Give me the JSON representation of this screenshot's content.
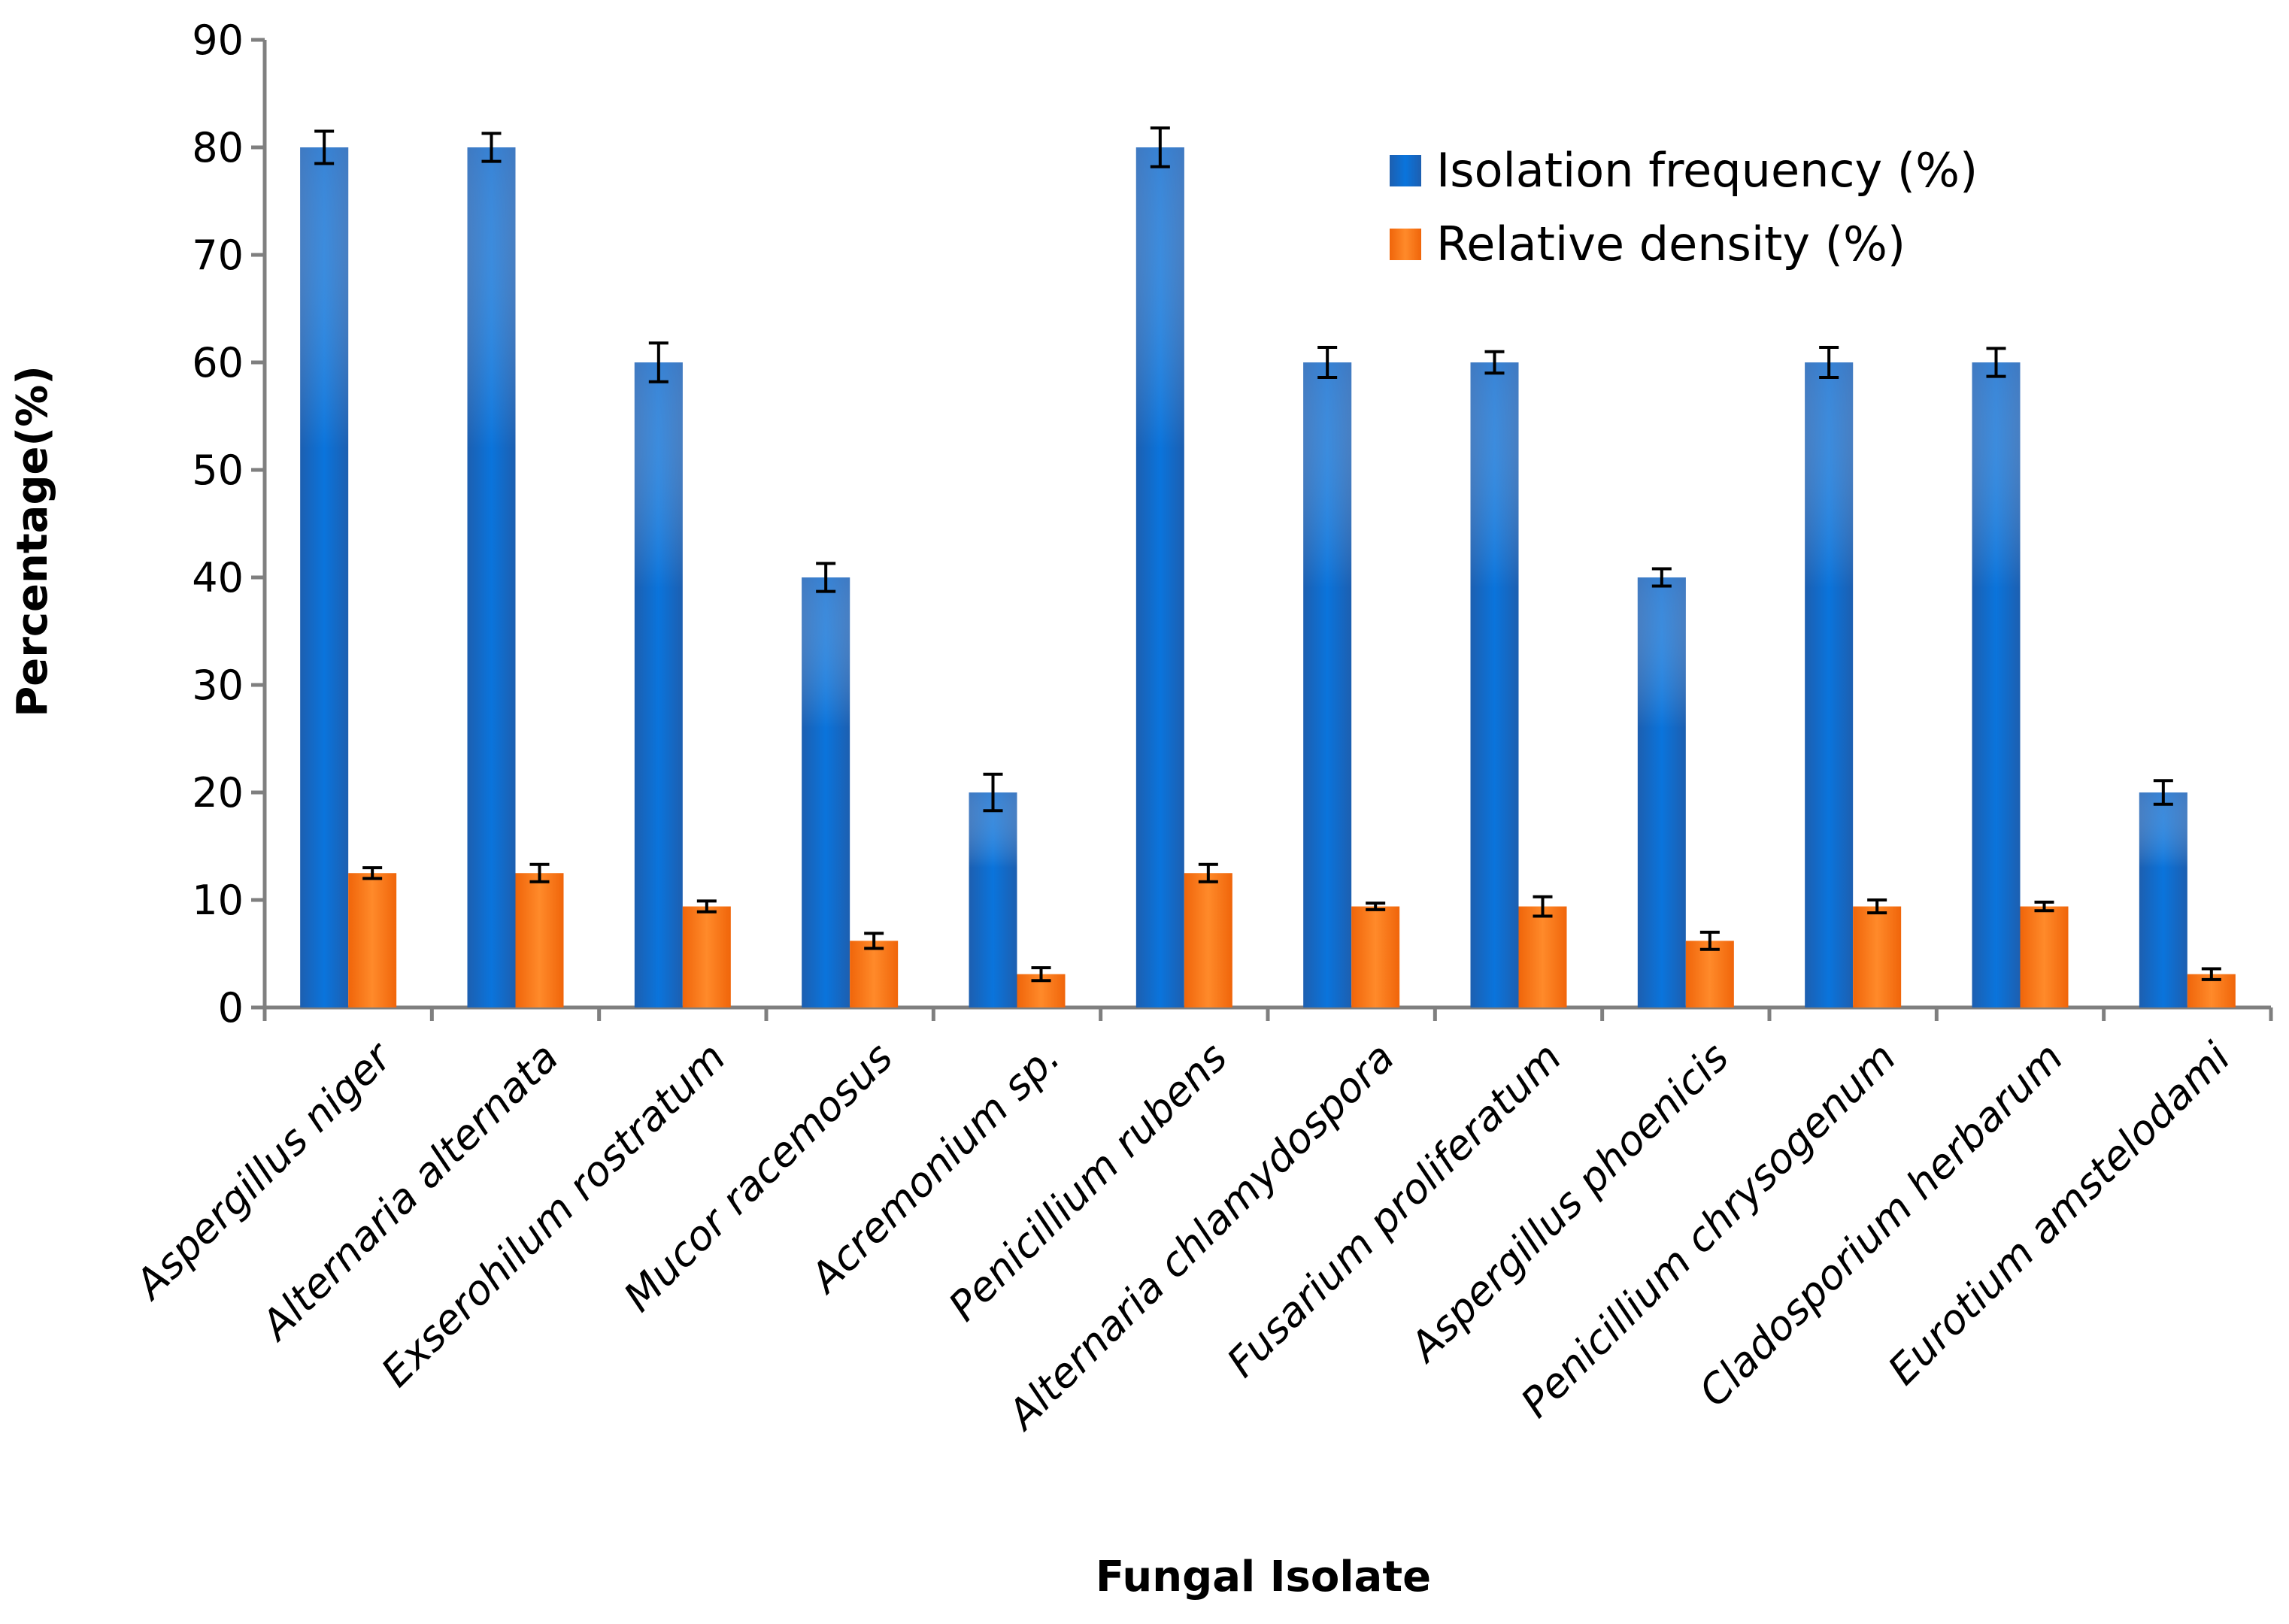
{
  "chart_data": {
    "type": "bar",
    "title": "",
    "xlabel": "Fungal Isolate",
    "ylabel": "Percentage(%)",
    "ylim": [
      0,
      90
    ],
    "yticks": [
      0,
      10,
      20,
      30,
      40,
      50,
      60,
      70,
      80,
      90
    ],
    "grid": false,
    "legend_position": "top-right",
    "categories": [
      "Aspergillus niger",
      "Alternaria alternata",
      "Exserohilum rostratum",
      "Mucor racemosus",
      "Acremonium sp.",
      "Penicillium rubens",
      "Alternaria chlamydospora",
      "Fusarium proliferatum",
      "Aspergillus phoenicis",
      "Penicillium chrysogenum",
      "Cladosporium herbarum",
      "Eurotium amstelodami"
    ],
    "series": [
      {
        "name": "Isolation frequency (%)",
        "color": "#0a6fd1",
        "values": [
          80,
          80,
          60,
          40,
          20,
          80,
          60,
          60,
          40,
          60,
          60,
          20
        ],
        "errors": [
          1.5,
          1.3,
          1.8,
          1.3,
          1.7,
          1.8,
          1.4,
          1.0,
          0.8,
          1.4,
          1.3,
          1.1
        ]
      },
      {
        "name": "Relative density (%)",
        "color": "#ff7a14",
        "values": [
          12.5,
          12.5,
          9.4,
          6.2,
          3.1,
          12.5,
          9.4,
          9.4,
          6.2,
          9.4,
          9.4,
          3.1
        ],
        "errors": [
          0.5,
          0.8,
          0.5,
          0.7,
          0.6,
          0.8,
          0.3,
          0.9,
          0.8,
          0.6,
          0.4,
          0.5
        ]
      }
    ]
  }
}
